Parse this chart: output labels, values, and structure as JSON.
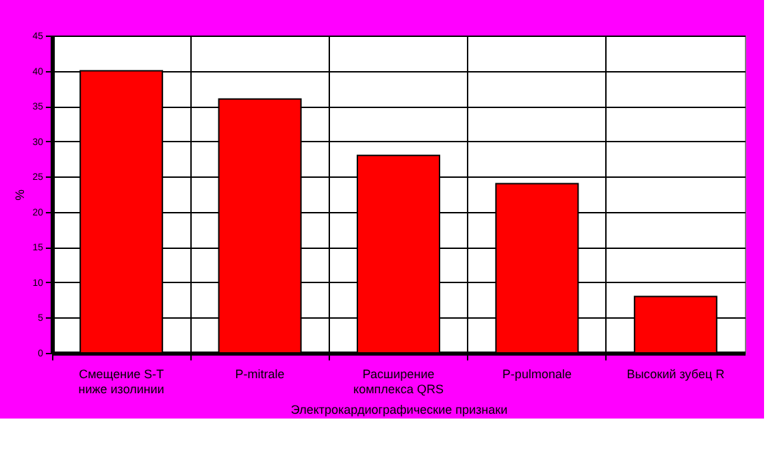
{
  "chart_data": {
    "type": "bar",
    "xlabel": "Электрокардиографические признаки",
    "ylabel": "%",
    "categories": [
      "Смещение S-T\nниже изолинии",
      "P-mitrale",
      "Расширение\nкомплекса QRS",
      "P-pulmonale",
      "Высокий зубец R"
    ],
    "values": [
      40,
      36,
      28,
      24,
      8
    ],
    "color": "#ff0000",
    "ylim": [
      0,
      45
    ],
    "yticks": [
      0,
      5,
      10,
      15,
      20,
      25,
      30,
      35,
      40,
      45
    ],
    "grid": true
  }
}
